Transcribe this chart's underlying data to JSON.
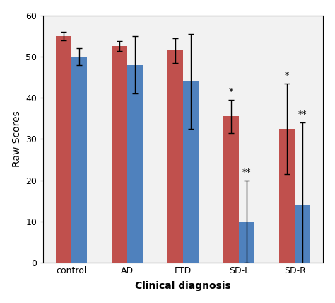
{
  "categories": [
    "control",
    "AD",
    "FTD",
    "SD-L",
    "SD-R"
  ],
  "red_values": [
    55.0,
    52.5,
    51.5,
    35.5,
    32.5
  ],
  "blue_values": [
    50.0,
    48.0,
    44.0,
    10.0,
    14.0
  ],
  "red_errors": [
    1.0,
    1.2,
    3.0,
    4.0,
    11.0
  ],
  "blue_errors": [
    2.0,
    7.0,
    11.5,
    10.0,
    20.0
  ],
  "red_color": "#C0504D",
  "blue_color": "#4F81BD",
  "ylabel": "Raw Scores",
  "xlabel": "Clinical diagnosis",
  "ylim": [
    0,
    60
  ],
  "yticks": [
    0,
    10,
    20,
    30,
    40,
    50,
    60
  ],
  "significance_red": [
    null,
    null,
    null,
    "*",
    "*"
  ],
  "significance_blue": [
    null,
    null,
    null,
    "**",
    "**"
  ],
  "bar_width": 0.28,
  "figsize": [
    4.74,
    4.28
  ],
  "dpi": 100,
  "bg_color": "#f2f2f2"
}
